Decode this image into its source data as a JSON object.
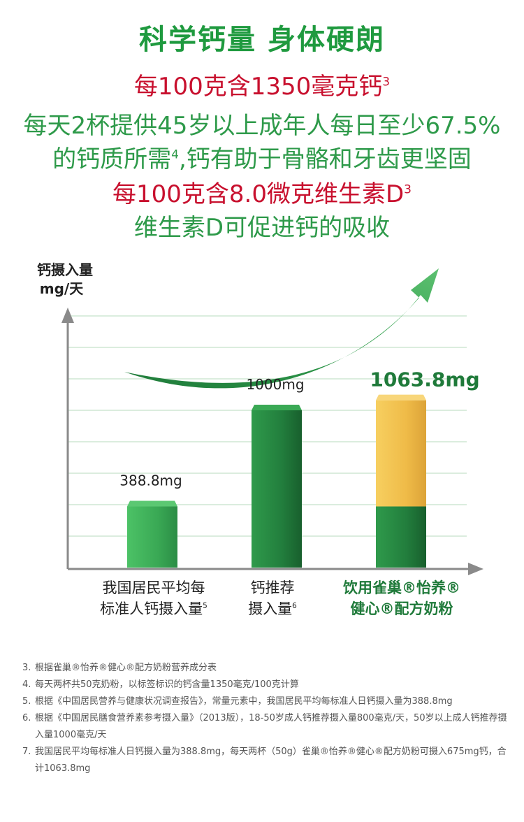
{
  "headline": {
    "title": "科学钙量  身体硬朗",
    "line1_text": "每100克含1350毫克钙",
    "line1_sup": "3",
    "line2_text": "每天2杯提供45岁以上成年人每日至少67.5%",
    "line3_text_a": "的钙质所需",
    "line3_sup": "4",
    "line3_text_b": ",钙有助于骨骼和牙齿更坚固",
    "line4_text": "每100克含8.0微克维生素D",
    "line4_sup": "3",
    "line5_text": "维生素D可促进钙的吸收"
  },
  "colors": {
    "red": "#c8102e",
    "green_text": "#2e9a4a",
    "bar_light": "#3fb05a",
    "bar_dark": "#1f7a3a",
    "bar_yellow": "#f2c04f"
  },
  "chart_data": {
    "type": "bar",
    "ylabel_line1": "钙摄入量",
    "ylabel_line2": "mg/天",
    "trend_arrow": true,
    "categories": [
      {
        "line1": "我国居民平均每",
        "line2": "标准人钙摄入量",
        "sup": "5"
      },
      {
        "line1": "钙推荐",
        "line2": "摄入量",
        "sup": "6"
      },
      {
        "line1": "饮用雀巢®怡养®",
        "line2": "健心®配方奶粉",
        "sup": ""
      }
    ],
    "bars": [
      {
        "value": 388.8,
        "label": "388.8mg",
        "segments": [
          {
            "value": 388.8,
            "color": "light"
          }
        ]
      },
      {
        "value": 1000,
        "label": "1000mg",
        "segments": [
          {
            "value": 1000,
            "color": "dark"
          }
        ]
      },
      {
        "value": 1063.8,
        "label": "1063.8mg",
        "segments": [
          {
            "value": 388.8,
            "color": "dark"
          },
          {
            "value": 675,
            "color": "yellow"
          }
        ]
      }
    ],
    "ylim": [
      0,
      1600
    ],
    "grid": true
  },
  "notes": [
    {
      "num": "3.",
      "text": "根据雀巢®怡养®健心®配方奶粉营养成分表"
    },
    {
      "num": "4.",
      "text": "每天两杯共50克奶粉，以标签标识的钙含量1350毫克/100克计算"
    },
    {
      "num": "5.",
      "text": "根据《中国居民营养与健康状况调查报告》，常量元素中，我国居民平均每标准人日钙摄入量为388.8mg"
    },
    {
      "num": "6.",
      "text": "根据《中国居民膳食营养素参考摄入量》（2013版），18-50岁成人钙推荐摄入量800毫克/天，50岁以上成人钙推荐摄入量1000毫克/天"
    },
    {
      "num": "7.",
      "text": "我国居民平均每标准人日钙摄入量为388.8mg，每天两杯（50g）雀巢®怡养®健心®配方奶粉可摄入675mg钙，合计1063.8mg"
    }
  ]
}
